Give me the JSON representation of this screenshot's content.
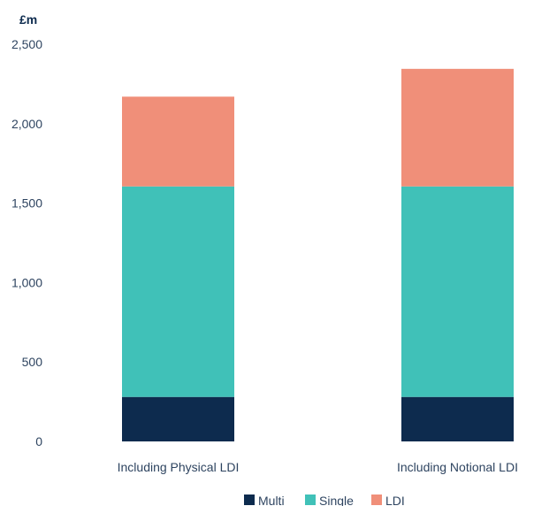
{
  "chart_data": {
    "type": "bar",
    "stacked": true,
    "unit_label": "£m",
    "title": "",
    "xlabel": "",
    "ylabel": "£m",
    "ylim": [
      0,
      2500
    ],
    "yticks": [
      0,
      500,
      1000,
      1500,
      2000,
      2500
    ],
    "ytick_labels": [
      "0",
      "500",
      "1,000",
      "1,500",
      "2,000",
      "2,500"
    ],
    "grid": false,
    "legend_position": "bottom-center",
    "categories": [
      "Including Physical LDI",
      "Including Notional LDI"
    ],
    "series": [
      {
        "name": "Multi",
        "color": "#0d2b4e",
        "values": [
          280,
          280
        ]
      },
      {
        "name": "Single",
        "color": "#40c1b8",
        "values": [
          1325,
          1325
        ]
      },
      {
        "name": "LDI",
        "color": "#f08f79",
        "values": [
          565,
          740
        ]
      }
    ]
  }
}
